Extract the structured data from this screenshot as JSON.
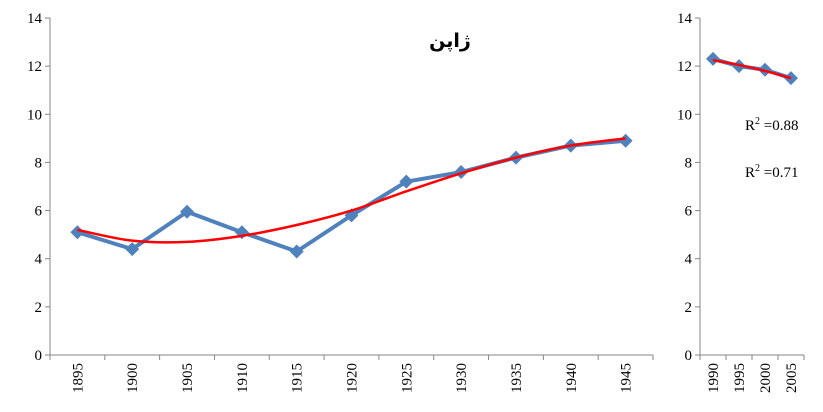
{
  "chart_data": [
    {
      "type": "line",
      "title": "ژاپن",
      "categories": [
        "1895",
        "1900",
        "1905",
        "1910",
        "1915",
        "1920",
        "1925",
        "1930",
        "1935",
        "1940",
        "1945"
      ],
      "series": [
        {
          "color": "#4f81bd",
          "marker": "diamond",
          "values": [
            5.1,
            4.4,
            5.95,
            5.1,
            4.3,
            5.8,
            7.2,
            7.6,
            8.2,
            8.7,
            8.9
          ]
        },
        {
          "color": "#ff0000",
          "smooth": true,
          "values": [
            5.2,
            4.75,
            4.7,
            4.95,
            5.4,
            6.0,
            6.8,
            7.55,
            8.2,
            8.7,
            9.0
          ]
        }
      ],
      "ylim": [
        0,
        14
      ],
      "yticks": [
        0,
        2,
        4,
        6,
        8,
        10,
        12,
        14
      ]
    },
    {
      "type": "line",
      "categories": [
        "1990",
        "1995",
        "2000",
        "2005"
      ],
      "series": [
        {
          "color": "#4f81bd",
          "marker": "diamond",
          "values": [
            12.3,
            12.0,
            11.85,
            11.5
          ]
        },
        {
          "color": "#ff0000",
          "smooth": true,
          "values": [
            12.25,
            12.05,
            11.8,
            11.5
          ]
        }
      ],
      "ylim": [
        0,
        14
      ],
      "yticks": [
        0,
        2,
        4,
        6,
        8,
        10,
        12,
        14
      ],
      "annotations": [
        {
          "base": "R",
          "sup": "2",
          "rest": " =0.88"
        },
        {
          "base": "R",
          "sup": "2",
          "rest": " =0.71"
        }
      ]
    }
  ]
}
